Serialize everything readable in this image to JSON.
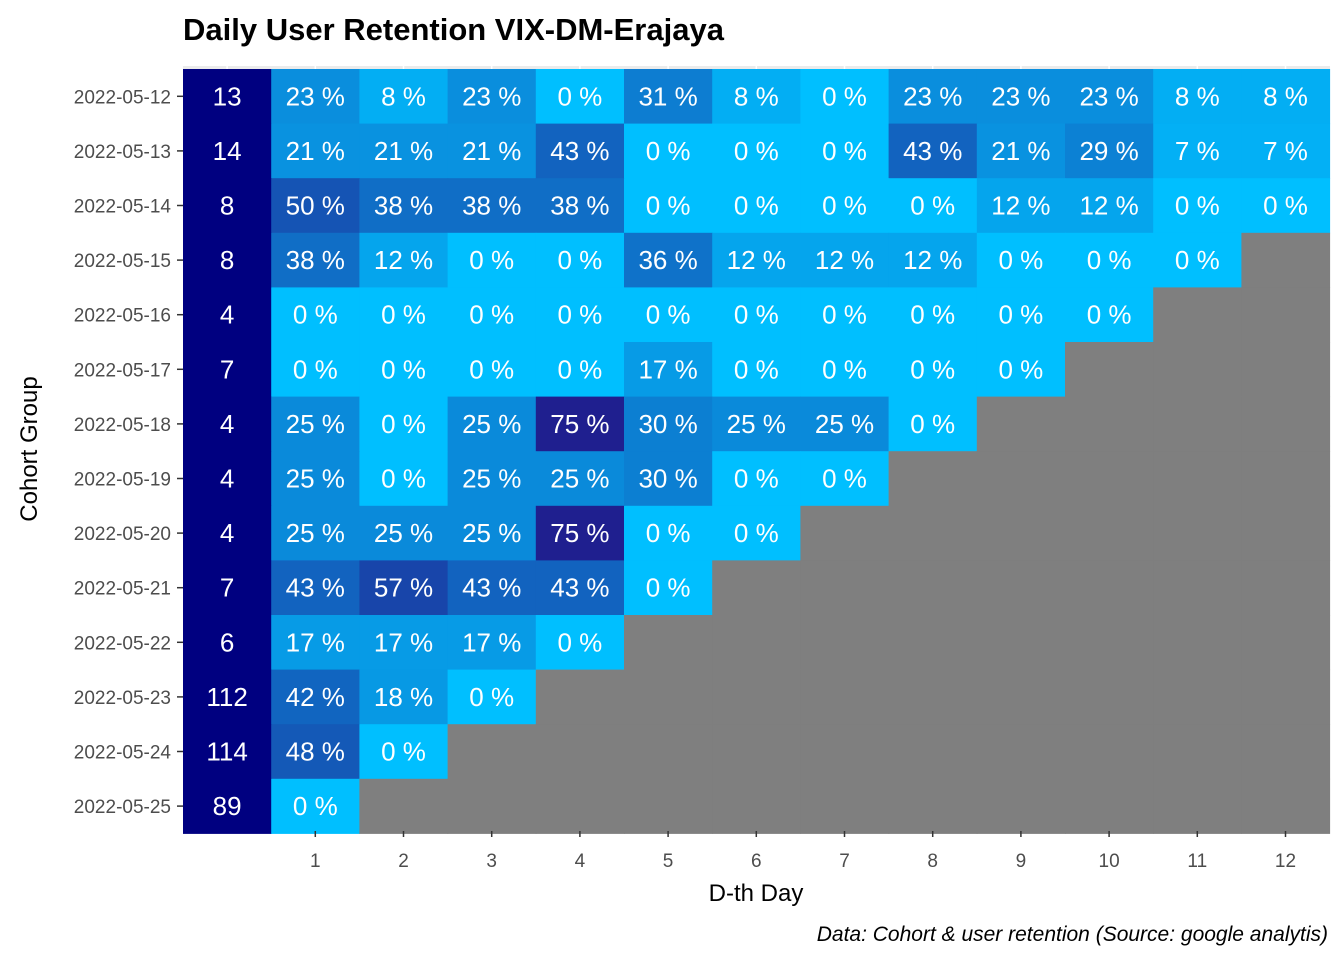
{
  "chart_data": {
    "type": "heatmap",
    "title": "Daily User Retention VIX-DM-Erajaya",
    "xlabel": "D-th Day",
    "ylabel": "Cohort Group",
    "caption": "Data: Cohort & user retention (Source: google analytis)",
    "x": [
      "1",
      "2",
      "3",
      "4",
      "5",
      "6",
      "7",
      "8",
      "9",
      "10",
      "11",
      "12"
    ],
    "cohorts": [
      "2022-05-12",
      "2022-05-13",
      "2022-05-14",
      "2022-05-15",
      "2022-05-16",
      "2022-05-17",
      "2022-05-18",
      "2022-05-19",
      "2022-05-20",
      "2022-05-21",
      "2022-05-22",
      "2022-05-23",
      "2022-05-24",
      "2022-05-25"
    ],
    "cohort_sizes": [
      13,
      14,
      8,
      8,
      4,
      7,
      4,
      4,
      4,
      7,
      6,
      112,
      114,
      89
    ],
    "retention_pct": [
      [
        23,
        8,
        23,
        0,
        31,
        8,
        0,
        23,
        23,
        23,
        8,
        8
      ],
      [
        21,
        21,
        21,
        43,
        0,
        0,
        0,
        43,
        21,
        29,
        7,
        7
      ],
      [
        50,
        38,
        38,
        38,
        0,
        0,
        0,
        0,
        12,
        12,
        0,
        0
      ],
      [
        38,
        12,
        0,
        0,
        36,
        12,
        12,
        12,
        0,
        0,
        0
      ],
      [
        0,
        0,
        0,
        0,
        0,
        0,
        0,
        0,
        0,
        0
      ],
      [
        0,
        0,
        0,
        0,
        17,
        0,
        0,
        0,
        0
      ],
      [
        25,
        0,
        25,
        75,
        30,
        25,
        25,
        0
      ],
      [
        25,
        0,
        25,
        25,
        30,
        0,
        0
      ],
      [
        25,
        25,
        25,
        75,
        0,
        0
      ],
      [
        43,
        57,
        43,
        43,
        0
      ],
      [
        17,
        17,
        17,
        0
      ],
      [
        42,
        18,
        0
      ],
      [
        48,
        0
      ],
      [
        0
      ]
    ],
    "value_suffix": " %",
    "grid": true,
    "colors": {
      "cohort_size_cell": "#000080",
      "na_cell": "#7f7f7f",
      "scale_low": "#00bfff",
      "scale_high": "#1f1f8f",
      "panel_background": "#ebebeb",
      "text_on_cell": "#ffffff"
    }
  }
}
